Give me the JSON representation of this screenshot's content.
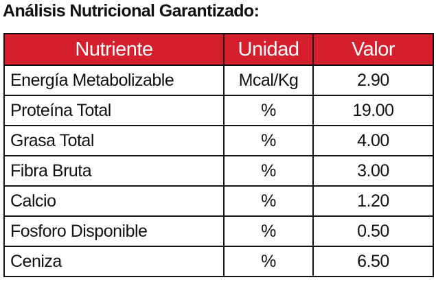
{
  "title": "Análisis Nutricional Garantizado:",
  "table": {
    "header": [
      "Nutriente",
      "Unidad",
      "Valor"
    ],
    "rows": [
      [
        "Energía Metabolizable",
        "Mcal/Kg",
        "2.90"
      ],
      [
        "Proteína Total",
        "%",
        "19.00"
      ],
      [
        "Grasa Total",
        "%",
        "4.00"
      ],
      [
        "Fibra Bruta",
        "%",
        "3.00"
      ],
      [
        "Calcio",
        "%",
        "1.20"
      ],
      [
        "Fosforo Disponible",
        "%",
        "0.50"
      ],
      [
        "Ceniza",
        "%",
        "6.50"
      ]
    ]
  }
}
